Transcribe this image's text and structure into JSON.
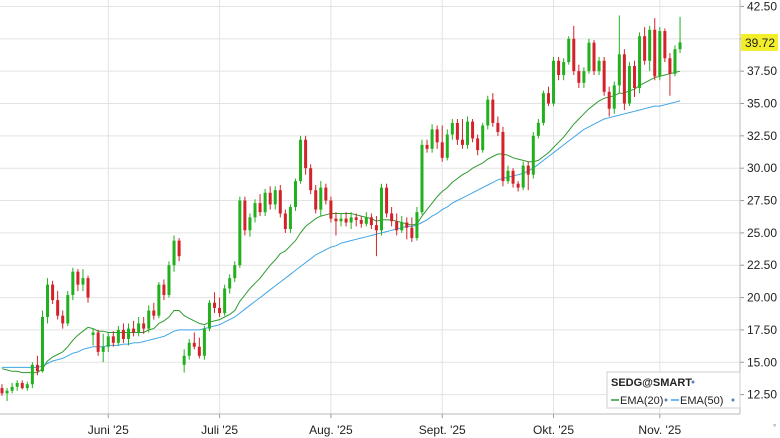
{
  "chart_data": {
    "type": "candlestick",
    "symbol": "SEDG@SMART",
    "y_axis": {
      "ylim": [
        11,
        43
      ],
      "ticks": [
        "12.50",
        "15.00",
        "17.50",
        "20.00",
        "22.50",
        "25.00",
        "27.50",
        "30.00",
        "32.50",
        "35.00",
        "37.50",
        "40.00",
        "42.50"
      ],
      "position": "right"
    },
    "x_axis": {
      "labels": [
        "Juni '25",
        "Juli '25",
        "Aug. '25",
        "Sept. '25",
        "Okt. '25",
        "Nov. '25"
      ],
      "label_at_index": [
        21,
        43,
        65,
        87,
        109,
        130
      ],
      "total_slots": 148
    },
    "last_price": "39.72",
    "grid": true,
    "legend": {
      "position": "bottom-right",
      "items": [
        "EMA(20)",
        "EMA(50)"
      ]
    },
    "colors": {
      "up": "#22b01e",
      "down": "#d3222a",
      "ema20": "#2f9a2f",
      "ema50": "#3fa6e6",
      "last_price_bg": "#f2ee2a",
      "grid": "#e3e3e3"
    },
    "candles": [
      [
        13.0,
        13.3,
        12.4,
        12.6
      ],
      [
        12.6,
        13.0,
        12.0,
        12.8
      ],
      [
        12.8,
        13.4,
        12.6,
        13.1
      ],
      [
        13.1,
        13.6,
        12.8,
        13.4
      ],
      [
        13.4,
        13.6,
        12.9,
        13.0
      ],
      [
        13.0,
        13.5,
        12.8,
        13.3
      ],
      [
        13.3,
        15.0,
        13.0,
        14.8
      ],
      [
        14.8,
        15.5,
        14.0,
        14.3
      ],
      [
        14.3,
        19.0,
        14.2,
        18.5
      ],
      [
        18.5,
        21.5,
        18.0,
        21.0
      ],
      [
        21.0,
        21.3,
        19.5,
        19.8
      ],
      [
        19.8,
        20.5,
        18.3,
        18.6
      ],
      [
        18.6,
        19.0,
        17.6,
        18.0
      ],
      [
        18.0,
        20.5,
        17.8,
        20.2
      ],
      [
        20.2,
        22.3,
        19.8,
        22.0
      ],
      [
        22.0,
        22.2,
        20.5,
        21.0
      ],
      [
        21.0,
        22.2,
        20.5,
        21.5
      ],
      [
        21.5,
        21.7,
        19.6,
        20.0
      ],
      [
        17.1,
        17.6,
        16.3,
        17.3
      ],
      [
        17.3,
        17.5,
        15.5,
        15.8
      ],
      [
        15.8,
        17.2,
        15.0,
        16.2
      ],
      [
        16.2,
        17.3,
        15.8,
        17.0
      ],
      [
        17.0,
        17.4,
        16.2,
        16.5
      ],
      [
        16.5,
        17.8,
        16.3,
        17.5
      ],
      [
        17.5,
        18.0,
        16.5,
        16.8
      ],
      [
        16.8,
        18.0,
        16.3,
        17.6
      ],
      [
        17.6,
        18.2,
        17.0,
        17.3
      ],
      [
        17.3,
        18.5,
        17.0,
        18.0
      ],
      [
        18.0,
        18.5,
        17.2,
        17.6
      ],
      [
        17.6,
        19.4,
        17.3,
        19.0
      ],
      [
        19.0,
        19.6,
        18.3,
        18.6
      ],
      [
        18.6,
        21.2,
        18.4,
        21.0
      ],
      [
        21.0,
        21.4,
        19.8,
        20.2
      ],
      [
        20.2,
        22.8,
        20.0,
        22.5
      ],
      [
        22.5,
        24.8,
        22.0,
        24.4
      ],
      [
        24.4,
        24.6,
        22.8,
        23.2
      ],
      [
        14.8,
        16.0,
        14.2,
        15.5
      ],
      [
        15.5,
        16.8,
        15.2,
        16.5
      ],
      [
        16.5,
        17.3,
        16.0,
        16.2
      ],
      [
        16.2,
        16.9,
        15.3,
        15.5
      ],
      [
        15.5,
        17.8,
        15.2,
        17.6
      ],
      [
        17.6,
        19.8,
        17.4,
        19.6
      ],
      [
        19.6,
        20.4,
        18.8,
        19.2
      ],
      [
        19.2,
        20.0,
        18.5,
        18.8
      ],
      [
        18.8,
        21.0,
        18.6,
        20.7
      ],
      [
        20.7,
        21.8,
        20.3,
        21.5
      ],
      [
        21.5,
        22.8,
        21.2,
        22.5
      ],
      [
        22.5,
        27.8,
        22.3,
        27.5
      ],
      [
        27.5,
        27.8,
        24.8,
        25.2
      ],
      [
        25.2,
        26.5,
        24.7,
        26.2
      ],
      [
        26.2,
        27.6,
        25.8,
        27.3
      ],
      [
        27.3,
        28.0,
        26.3,
        26.6
      ],
      [
        26.6,
        28.4,
        26.3,
        28.1
      ],
      [
        28.1,
        28.6,
        26.8,
        27.2
      ],
      [
        27.2,
        28.6,
        26.8,
        28.3
      ],
      [
        28.3,
        28.7,
        26.2,
        26.5
      ],
      [
        26.5,
        26.8,
        25.0,
        25.3
      ],
      [
        25.3,
        27.2,
        25.0,
        27.0
      ],
      [
        27.0,
        29.2,
        26.7,
        29.0
      ],
      [
        29.0,
        32.5,
        28.8,
        32.2
      ],
      [
        32.2,
        32.5,
        29.5,
        30.0
      ],
      [
        30.0,
        30.3,
        28.0,
        28.3
      ],
      [
        28.3,
        28.7,
        26.5,
        26.8
      ],
      [
        26.8,
        29.0,
        26.3,
        28.5
      ],
      [
        28.5,
        28.8,
        27.2,
        27.5
      ],
      [
        27.5,
        27.8,
        25.8,
        26.1
      ],
      [
        26.1,
        26.6,
        24.8,
        25.9
      ],
      [
        25.9,
        26.5,
        25.5,
        26.1
      ],
      [
        26.1,
        26.6,
        25.5,
        25.8
      ],
      [
        25.8,
        26.6,
        25.3,
        26.2
      ],
      [
        26.2,
        26.5,
        25.5,
        26.0
      ],
      [
        26.0,
        26.3,
        25.4,
        25.7
      ],
      [
        25.7,
        26.6,
        25.5,
        26.2
      ],
      [
        26.2,
        26.5,
        25.3,
        25.6
      ],
      [
        25.6,
        26.3,
        23.2,
        25.2
      ],
      [
        25.2,
        28.8,
        24.8,
        28.5
      ],
      [
        28.5,
        28.8,
        26.2,
        26.5
      ],
      [
        26.5,
        27.0,
        25.5,
        25.9
      ],
      [
        25.9,
        26.5,
        24.8,
        25.2
      ],
      [
        25.2,
        26.3,
        25.0,
        25.8
      ],
      [
        25.8,
        26.2,
        24.5,
        25.4
      ],
      [
        25.4,
        26.2,
        24.3,
        24.6
      ],
      [
        24.6,
        27.0,
        24.4,
        26.6
      ],
      [
        26.6,
        32.2,
        26.4,
        31.8
      ],
      [
        31.8,
        32.2,
        31.2,
        31.5
      ],
      [
        31.5,
        33.4,
        31.2,
        33.0
      ],
      [
        33.0,
        33.3,
        31.5,
        32.0
      ],
      [
        32.0,
        33.3,
        30.5,
        30.8
      ],
      [
        30.8,
        33.0,
        30.6,
        32.6
      ],
      [
        32.6,
        33.8,
        32.2,
        33.5
      ],
      [
        33.5,
        33.8,
        31.8,
        32.2
      ],
      [
        32.2,
        33.8,
        31.5,
        31.8
      ],
      [
        31.8,
        34.0,
        31.5,
        33.6
      ],
      [
        33.6,
        33.8,
        32.0,
        32.3
      ],
      [
        32.3,
        32.6,
        31.0,
        31.4
      ],
      [
        31.4,
        33.5,
        31.2,
        33.3
      ],
      [
        33.3,
        35.6,
        33.0,
        35.3
      ],
      [
        35.3,
        35.8,
        33.2,
        33.5
      ],
      [
        33.5,
        34.0,
        32.5,
        32.8
      ],
      [
        32.8,
        33.2,
        28.6,
        29.0
      ],
      [
        29.0,
        30.2,
        28.8,
        29.8
      ],
      [
        29.8,
        30.0,
        28.5,
        28.8
      ],
      [
        28.8,
        29.0,
        28.2,
        28.5
      ],
      [
        28.5,
        30.5,
        28.3,
        30.2
      ],
      [
        30.2,
        30.5,
        28.3,
        29.5
      ],
      [
        29.5,
        32.8,
        29.2,
        32.5
      ],
      [
        32.5,
        33.8,
        32.3,
        33.5
      ],
      [
        33.5,
        36.0,
        33.3,
        35.8
      ],
      [
        35.8,
        36.3,
        34.8,
        35.0
      ],
      [
        35.0,
        38.6,
        34.8,
        38.3
      ],
      [
        38.3,
        38.6,
        36.8,
        37.2
      ],
      [
        37.2,
        38.5,
        36.8,
        38.2
      ],
      [
        38.2,
        40.2,
        38.0,
        40.0
      ],
      [
        40.0,
        41.0,
        37.2,
        37.5
      ],
      [
        37.5,
        38.0,
        36.2,
        36.6
      ],
      [
        36.6,
        37.8,
        36.2,
        37.5
      ],
      [
        37.5,
        40.0,
        37.3,
        39.7
      ],
      [
        39.7,
        39.9,
        37.2,
        37.5
      ],
      [
        37.5,
        38.6,
        37.2,
        38.3
      ],
      [
        38.3,
        38.6,
        35.6,
        35.9
      ],
      [
        35.9,
        36.3,
        34.0,
        34.6
      ],
      [
        34.6,
        36.7,
        34.2,
        36.4
      ],
      [
        36.4,
        41.8,
        35.8,
        38.8
      ],
      [
        38.8,
        39.2,
        34.5,
        35.0
      ],
      [
        35.0,
        38.2,
        34.8,
        37.9
      ],
      [
        37.9,
        38.3,
        35.5,
        36.2
      ],
      [
        36.2,
        40.5,
        35.8,
        40.2
      ],
      [
        40.2,
        40.9,
        38.0,
        38.3
      ],
      [
        38.3,
        41.0,
        37.5,
        40.7
      ],
      [
        40.7,
        41.6,
        36.8,
        37.1
      ],
      [
        37.1,
        40.9,
        36.8,
        40.6
      ],
      [
        40.6,
        40.8,
        38.2,
        38.5
      ],
      [
        38.5,
        38.9,
        35.6,
        37.3
      ],
      [
        37.3,
        39.5,
        37.1,
        39.2
      ],
      [
        39.2,
        41.7,
        38.9,
        39.72
      ]
    ],
    "ema20": [
      14.5,
      14.4,
      14.3,
      14.3,
      14.2,
      14.2,
      14.2,
      14.2,
      14.5,
      15.1,
      15.4,
      15.6,
      15.8,
      16.2,
      16.7,
      17.1,
      17.4,
      17.7,
      17.6,
      17.4,
      17.4,
      17.3,
      17.3,
      17.3,
      17.3,
      17.3,
      17.3,
      17.3,
      17.3,
      17.5,
      17.6,
      18.0,
      18.2,
      18.5,
      19.0,
      19.0,
      18.6,
      18.4,
      18.2,
      18.0,
      17.9,
      18.1,
      18.2,
      18.3,
      18.5,
      18.7,
      19.0,
      19.7,
      20.2,
      20.7,
      21.1,
      21.5,
      22.0,
      22.5,
      22.9,
      23.4,
      23.6,
      24.0,
      24.4,
      25.0,
      25.5,
      25.8,
      26.1,
      26.3,
      26.4,
      26.5,
      26.5,
      26.5,
      26.5,
      26.5,
      26.4,
      26.3,
      26.2,
      26.1,
      25.9,
      26.0,
      26.0,
      26.0,
      25.9,
      25.8,
      25.7,
      25.6,
      25.7,
      26.3,
      26.8,
      27.3,
      27.8,
      28.2,
      28.5,
      28.9,
      29.2,
      29.5,
      29.7,
      30.0,
      30.2,
      30.4,
      30.7,
      30.9,
      31.1,
      31.1,
      31.0,
      30.8,
      30.7,
      30.6,
      30.5,
      30.5,
      30.6,
      30.9,
      31.2,
      31.6,
      32.0,
      32.4,
      32.9,
      33.4,
      33.8,
      34.2,
      34.6,
      34.9,
      35.2,
      35.4,
      35.5,
      35.6,
      35.8,
      35.8,
      36.0,
      36.1,
      36.4,
      36.6,
      36.8,
      37.0,
      37.1,
      37.2,
      37.3,
      37.4,
      37.5
    ],
    "ema50": [
      14.6,
      14.6,
      14.6,
      14.6,
      14.6,
      14.6,
      14.6,
      14.6,
      14.7,
      14.9,
      15.1,
      15.2,
      15.3,
      15.5,
      15.7,
      15.8,
      16.0,
      16.1,
      16.2,
      16.2,
      16.2,
      16.3,
      16.3,
      16.3,
      16.4,
      16.4,
      16.5,
      16.5,
      16.6,
      16.7,
      16.8,
      16.9,
      17.0,
      17.2,
      17.4,
      17.5,
      17.5,
      17.5,
      17.5,
      17.5,
      17.6,
      17.7,
      17.8,
      17.9,
      18.1,
      18.3,
      18.5,
      18.8,
      19.1,
      19.4,
      19.7,
      20.0,
      20.3,
      20.6,
      20.9,
      21.2,
      21.5,
      21.8,
      22.1,
      22.4,
      22.7,
      23.0,
      23.3,
      23.5,
      23.7,
      23.9,
      24.0,
      24.2,
      24.3,
      24.4,
      24.5,
      24.6,
      24.7,
      24.8,
      24.9,
      25.0,
      25.1,
      25.2,
      25.3,
      25.4,
      25.5,
      25.5,
      25.6,
      25.8,
      26.0,
      26.3,
      26.5,
      26.8,
      27.0,
      27.3,
      27.5,
      27.7,
      27.9,
      28.1,
      28.3,
      28.5,
      28.7,
      28.9,
      29.1,
      29.2,
      29.3,
      29.4,
      29.5,
      29.6,
      29.8,
      30.0,
      30.3,
      30.6,
      30.9,
      31.2,
      31.5,
      31.8,
      32.1,
      32.4,
      32.7,
      33.0,
      33.2,
      33.4,
      33.6,
      33.8,
      33.9,
      34.0,
      34.1,
      34.2,
      34.3,
      34.4,
      34.5,
      34.6,
      34.7,
      34.8,
      34.8,
      34.9,
      35.0,
      35.1,
      35.2
    ]
  }
}
